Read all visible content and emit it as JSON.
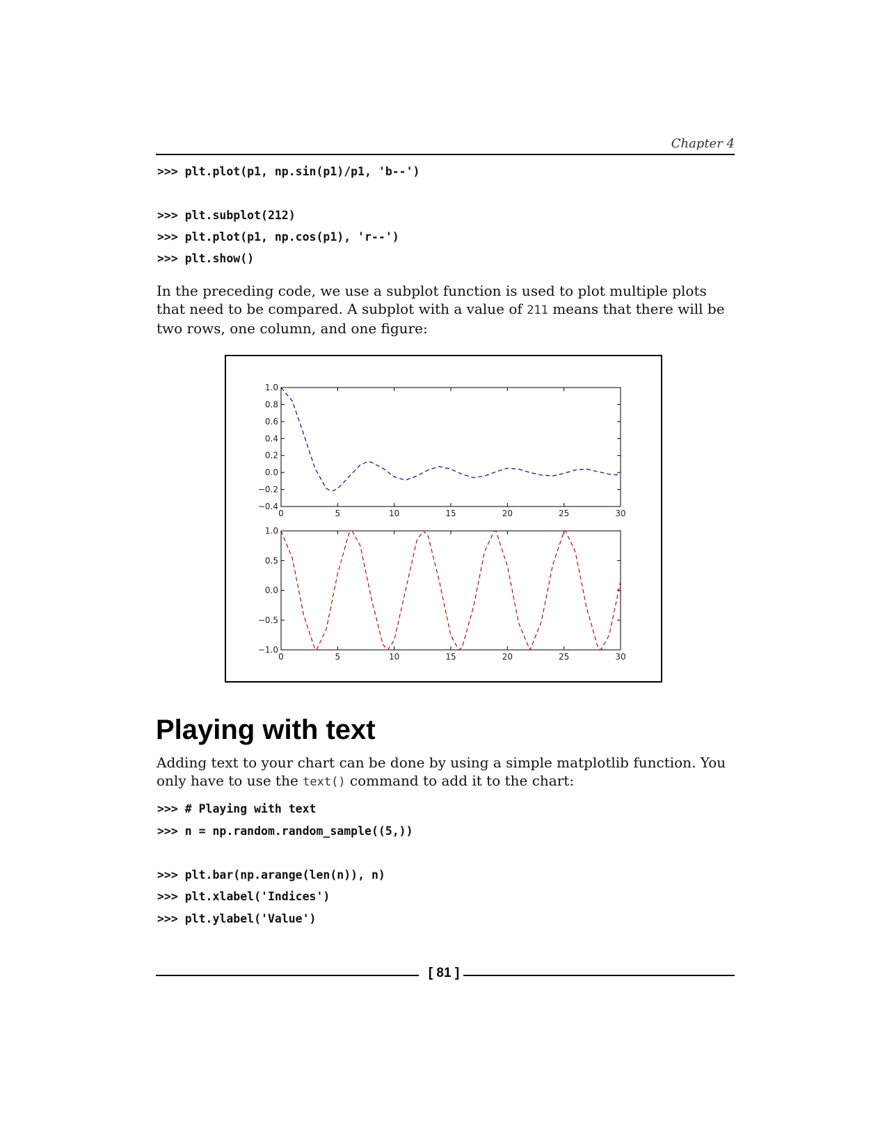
{
  "header": {
    "chapter": "Chapter 4"
  },
  "code_block_1": [
    ">>> plt.plot(p1, np.sin(p1)/p1, 'b--')",
    ">>> plt.subplot(212)",
    ">>> plt.plot(p1, np.cos(p1), 'r--')",
    ">>> plt.show()"
  ],
  "paragraph_1": {
    "part1": "In the preceding code, we use a subplot function is used to plot multiple plots that need to be compared. A subplot with a value of ",
    "code": "211",
    "part2": " means that there will be two rows, one column, and one figure:"
  },
  "chart_data": [
    {
      "type": "line",
      "function": "sin(x)/x",
      "x_range": [
        0,
        30
      ],
      "ylim": [
        -0.4,
        1.0
      ],
      "xticks": [
        "0",
        "5",
        "10",
        "15",
        "20",
        "25",
        "30"
      ],
      "yticks": [
        "1.0",
        "0.8",
        "0.6",
        "0.4",
        "0.2",
        "0.0",
        "−0.2",
        "−0.4"
      ],
      "line_style": "dashed",
      "color": "#0000cc",
      "points": [
        [
          0,
          1.0
        ],
        [
          1,
          0.84
        ],
        [
          2,
          0.45
        ],
        [
          3,
          0.05
        ],
        [
          4,
          -0.19
        ],
        [
          4.5,
          -0.22
        ],
        [
          5,
          -0.19
        ],
        [
          6,
          -0.05
        ],
        [
          7,
          0.09
        ],
        [
          7.7,
          0.13
        ],
        [
          8,
          0.12
        ],
        [
          9,
          0.05
        ],
        [
          10,
          -0.05
        ],
        [
          11,
          -0.09
        ],
        [
          12,
          -0.04
        ],
        [
          13,
          0.03
        ],
        [
          14,
          0.07
        ],
        [
          15,
          0.04
        ],
        [
          16,
          -0.02
        ],
        [
          17,
          -0.06
        ],
        [
          18,
          -0.04
        ],
        [
          19,
          0.01
        ],
        [
          20,
          0.05
        ],
        [
          21,
          0.04
        ],
        [
          22,
          0.0
        ],
        [
          23,
          -0.03
        ],
        [
          24,
          -0.04
        ],
        [
          25,
          -0.01
        ],
        [
          26,
          0.03
        ],
        [
          27,
          0.04
        ],
        [
          28,
          0.01
        ],
        [
          29,
          -0.02
        ],
        [
          30,
          -0.03
        ]
      ]
    },
    {
      "type": "line",
      "function": "cos(x)",
      "x_range": [
        0,
        30
      ],
      "ylim": [
        -1.0,
        1.0
      ],
      "xticks": [
        "0",
        "5",
        "10",
        "15",
        "20",
        "25",
        "30"
      ],
      "yticks": [
        "1.0",
        "0.5",
        "0.0",
        "−0.5",
        "−1.0"
      ],
      "line_style": "dashed",
      "color": "#cc0000",
      "points": [
        [
          0,
          1.0
        ],
        [
          1,
          0.54
        ],
        [
          2,
          -0.42
        ],
        [
          3,
          -0.99
        ],
        [
          3.14,
          -1.0
        ],
        [
          4,
          -0.65
        ],
        [
          5,
          0.28
        ],
        [
          6,
          0.96
        ],
        [
          6.28,
          1.0
        ],
        [
          7,
          0.75
        ],
        [
          8,
          -0.15
        ],
        [
          9,
          -0.91
        ],
        [
          9.42,
          -1.0
        ],
        [
          10,
          -0.84
        ],
        [
          11,
          0.0
        ],
        [
          12,
          0.84
        ],
        [
          12.57,
          1.0
        ],
        [
          13,
          0.91
        ],
        [
          14,
          0.14
        ],
        [
          15,
          -0.76
        ],
        [
          15.71,
          -1.0
        ],
        [
          16,
          -0.96
        ],
        [
          17,
          -0.28
        ],
        [
          18,
          0.66
        ],
        [
          18.85,
          1.0
        ],
        [
          19,
          0.99
        ],
        [
          20,
          0.41
        ],
        [
          21,
          -0.55
        ],
        [
          21.99,
          -1.0
        ],
        [
          22,
          -1.0
        ],
        [
          23,
          -0.53
        ],
        [
          24,
          0.42
        ],
        [
          25,
          0.99
        ],
        [
          25.13,
          1.0
        ],
        [
          26,
          0.65
        ],
        [
          27,
          -0.29
        ],
        [
          28,
          -0.96
        ],
        [
          28.27,
          -1.0
        ],
        [
          29,
          -0.75
        ],
        [
          30,
          0.15
        ]
      ]
    }
  ],
  "section": {
    "title": "Playing with text"
  },
  "paragraph_2": {
    "part1": "Adding text to your chart can be done by using a simple matplotlib function. You only have to use the ",
    "code": "text()",
    "part2": " command to add it to the chart:"
  },
  "code_block_2": [
    ">>> # Playing with text",
    ">>> n = np.random.random_sample((5,))",
    ">>> plt.bar(np.arange(len(n)), n)",
    ">>> plt.xlabel('Indices')",
    ">>> plt.ylabel('Value')"
  ],
  "footer": {
    "page_number": "[ 81 ]"
  }
}
